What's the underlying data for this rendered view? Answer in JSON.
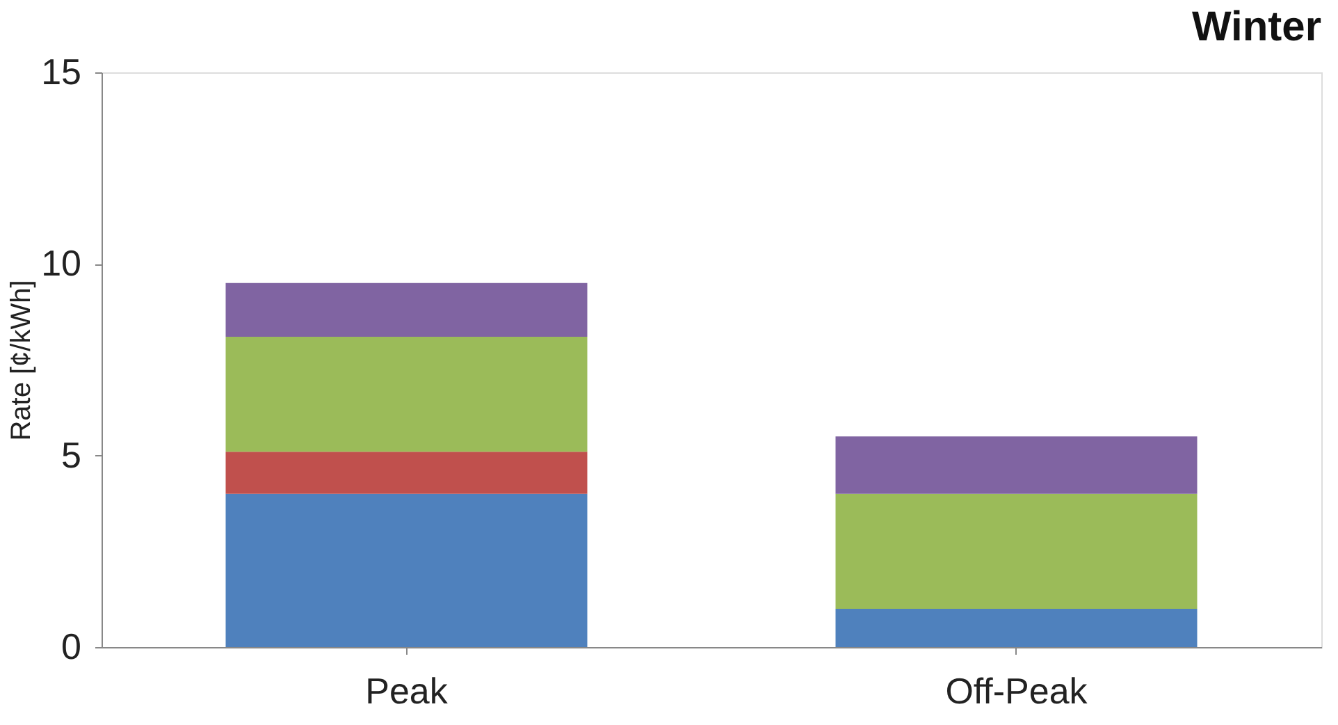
{
  "chart_data": {
    "type": "bar",
    "title": "Winter",
    "ylabel": "Rate [¢/kWh]",
    "categories": [
      "Peak",
      "Off-Peak"
    ],
    "stacked": true,
    "ylim": [
      0,
      15
    ],
    "yticks": [
      0,
      5,
      10,
      15
    ],
    "grid": false,
    "series": [
      {
        "color": "#4f81bd",
        "values": [
          4.0,
          1.0
        ]
      },
      {
        "color": "#c0504d",
        "values": [
          1.1,
          null
        ]
      },
      {
        "color": "#9bbb59",
        "values": [
          3.0,
          3.0
        ]
      },
      {
        "color": "#8064a2",
        "values": [
          1.4,
          1.5
        ]
      }
    ]
  }
}
